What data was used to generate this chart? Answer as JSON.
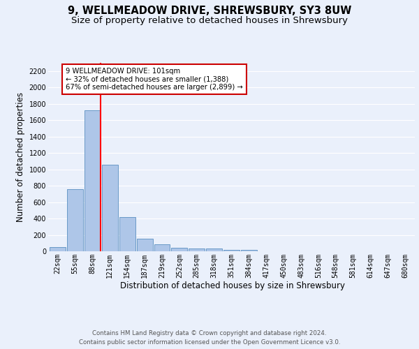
{
  "title1": "9, WELLMEADOW DRIVE, SHREWSBURY, SY3 8UW",
  "title2": "Size of property relative to detached houses in Shrewsbury",
  "xlabel": "Distribution of detached houses by size in Shrewsbury",
  "ylabel": "Number of detached properties",
  "bin_labels": [
    "22sqm",
    "55sqm",
    "88sqm",
    "121sqm",
    "154sqm",
    "187sqm",
    "219sqm",
    "252sqm",
    "285sqm",
    "318sqm",
    "351sqm",
    "384sqm",
    "417sqm",
    "450sqm",
    "483sqm",
    "516sqm",
    "548sqm",
    "581sqm",
    "614sqm",
    "647sqm",
    "680sqm"
  ],
  "bar_heights": [
    55,
    760,
    1720,
    1060,
    420,
    150,
    85,
    45,
    35,
    30,
    20,
    20,
    0,
    0,
    0,
    0,
    0,
    0,
    0,
    0,
    0
  ],
  "bar_color": "#aec6e8",
  "bar_edge_color": "#5a8fc0",
  "red_line_bin": 2,
  "annotation_text": "9 WELLMEADOW DRIVE: 101sqm\n← 32% of detached houses are smaller (1,388)\n67% of semi-detached houses are larger (2,899) →",
  "annotation_box_color": "#ffffff",
  "annotation_box_edge": "#cc0000",
  "ylim": [
    0,
    2300
  ],
  "yticks": [
    0,
    200,
    400,
    600,
    800,
    1000,
    1200,
    1400,
    1600,
    1800,
    2000,
    2200
  ],
  "footer1": "Contains HM Land Registry data © Crown copyright and database right 2024.",
  "footer2": "Contains public sector information licensed under the Open Government Licence v3.0.",
  "bg_color": "#eaf0fb",
  "grid_color": "#ffffff",
  "title_fontsize": 10.5,
  "subtitle_fontsize": 9.5,
  "tick_fontsize": 7,
  "ylabel_fontsize": 8.5,
  "xlabel_fontsize": 8.5,
  "footer_fontsize": 6.2
}
